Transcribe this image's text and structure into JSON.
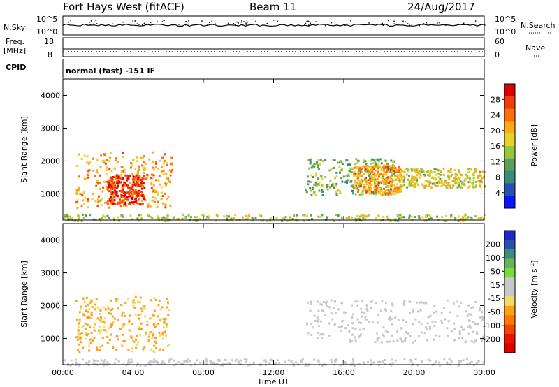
{
  "header": {
    "radar": "Fort Hays West (fitACF)",
    "beam": "Beam 11",
    "date": "24/Aug/2017"
  },
  "top_panels": {
    "nsky_label": "N.Sky",
    "nsky_ticks": [
      "10^5",
      "10^0"
    ],
    "nsearch_label": "N.Search",
    "nsearch_ticks": [
      "10^5",
      "10^0"
    ],
    "freq_label_line1": "Freq.",
    "freq_label_line2": "[MHz]",
    "freq_ticks": [
      "18",
      "8"
    ],
    "nave_label": "Nave",
    "nave_ticks": [
      "60",
      "0"
    ],
    "cpid_label": "CPID",
    "cpid_text": "normal (fast) -151 IF"
  },
  "colors": {
    "power_scale": [
      "#0a14ff",
      "#2850b4",
      "#3a8c7a",
      "#5aa05a",
      "#96c83c",
      "#e6d228",
      "#ffaa14",
      "#ff6e0a",
      "#f03c0a",
      "#dc0000"
    ],
    "velocity_scale": [
      "#1e28c8",
      "#2850b4",
      "#3c8c82",
      "#64b45a",
      "#78dc3c",
      "#c8c8c8",
      "#c8c8c8",
      "#f0dc64",
      "#ffa014",
      "#ff7800",
      "#f04600",
      "#e61400",
      "#dc0000"
    ]
  },
  "chart_data": [
    {
      "type": "heatmap",
      "name": "power",
      "ylabel": "Slant Range [km]",
      "yticks": [
        "1000",
        "2000",
        "3000",
        "4000"
      ],
      "ylim": [
        200,
        4500
      ],
      "colorbar_label": "Power [dB]",
      "colorbar_ticks": [
        "4",
        "8",
        "12",
        "16",
        "20",
        "24",
        "28"
      ],
      "colorbar_range": [
        0,
        30
      ],
      "regions": [
        {
          "t": [
            0.7,
            6.2
          ],
          "r": [
            600,
            2300
          ],
          "v": 20
        },
        {
          "t": [
            2.5,
            4.6
          ],
          "r": [
            700,
            1600
          ],
          "v": 26
        },
        {
          "t": [
            13.8,
            19.0
          ],
          "r": [
            1000,
            2100
          ],
          "v": 12
        },
        {
          "t": [
            16.5,
            19.2
          ],
          "r": [
            1000,
            1900
          ],
          "v": 20
        },
        {
          "t": [
            19.0,
            24.0
          ],
          "r": [
            1200,
            1800
          ],
          "v": 16
        },
        {
          "t": [
            0.0,
            24.0
          ],
          "r": [
            200,
            400
          ],
          "v": 14
        }
      ]
    },
    {
      "type": "heatmap",
      "name": "velocity",
      "ylabel": "Slant Range [km]",
      "yticks": [
        "1000",
        "2000",
        "3000",
        "4000"
      ],
      "ylim": [
        200,
        4500
      ],
      "colorbar_label": "Velocity [m s^-1]",
      "colorbar_ticks": [
        "200",
        "100",
        "50",
        "15",
        "-15",
        "-50",
        "-100",
        "-200"
      ],
      "colorbar_range": [
        -250,
        250
      ],
      "regions": [
        {
          "t": [
            0.7,
            6.0
          ],
          "r": [
            600,
            2300
          ],
          "v": -60
        },
        {
          "t": [
            13.8,
            24.0
          ],
          "r": [
            900,
            2200
          ],
          "v": 0
        },
        {
          "t": [
            0.0,
            24.0
          ],
          "r": [
            200,
            400
          ],
          "v": 30
        }
      ]
    }
  ],
  "x_axis": {
    "label": "Time UT",
    "ticks": [
      "00:00",
      "04:00",
      "08:00",
      "12:00",
      "16:00",
      "20:00",
      "00:00"
    ],
    "xlim": [
      0,
      24
    ]
  }
}
